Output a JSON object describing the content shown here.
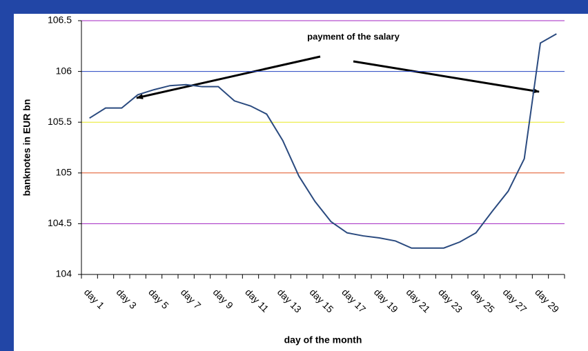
{
  "chart_data": {
    "type": "line",
    "xlabel": "day of the month",
    "ylabel": "banknotes in EUR bn",
    "annotation": "payment of the salary",
    "categories": [
      "day 1",
      null,
      "day 3",
      null,
      "day 5",
      null,
      "day 7",
      null,
      "day 9",
      null,
      "day 11",
      null,
      "day 13",
      null,
      "day 15",
      null,
      "day 17",
      null,
      "day 19",
      null,
      "day 21",
      null,
      "day 23",
      null,
      "day 25",
      null,
      "day 27",
      null,
      "day 29",
      null
    ],
    "series": [
      {
        "name": "banknotes",
        "color": "#2a4a7f",
        "values": [
          105.54,
          105.64,
          105.64,
          105.77,
          105.82,
          105.86,
          105.87,
          105.85,
          105.85,
          105.71,
          105.66,
          105.58,
          105.32,
          104.97,
          104.72,
          104.52,
          104.41,
          104.38,
          104.36,
          104.33,
          104.26,
          104.26,
          104.26,
          104.32,
          104.41,
          104.62,
          104.82,
          105.14,
          106.28,
          106.37
        ]
      }
    ],
    "ylim": [
      104,
      106.5
    ],
    "yticks": [
      104,
      104.5,
      105,
      105.5,
      106,
      106.5
    ],
    "grid": true,
    "grid_colors": [
      null,
      "#a020c0",
      "#e05020",
      "#e8e820",
      "#2040c0",
      "#a020c0"
    ]
  }
}
